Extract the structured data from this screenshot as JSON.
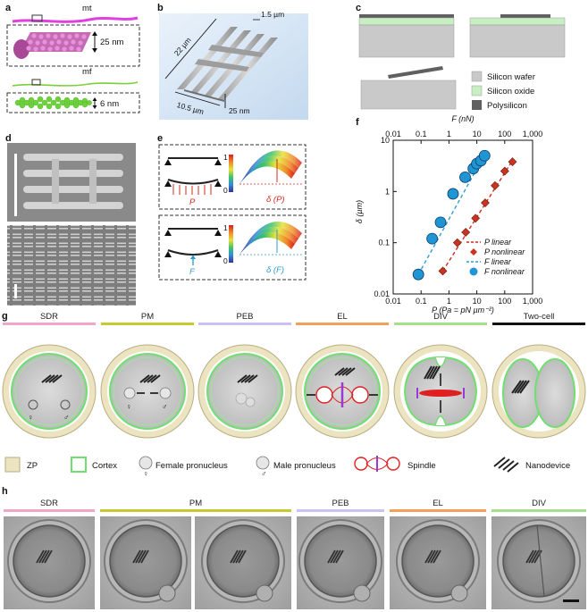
{
  "panels": {
    "a": "a",
    "b": "b",
    "c": "c",
    "d": "d",
    "e": "e",
    "f": "f",
    "g": "g",
    "h": "h"
  },
  "panel_a": {
    "mt_label": "mt",
    "mt_size": "25 nm",
    "mf_label": "mf",
    "mf_size": "6 nm"
  },
  "panel_b": {
    "dim_width": "1.5 µm",
    "dim_length": "22 µm",
    "dim_span": "10.5 µm",
    "dim_thickness": "25 nm"
  },
  "panel_c": {
    "legend": [
      "Silicon wafer",
      "Silicon oxide",
      "Polysilicon"
    ],
    "colors": {
      "wafer": "#c9c9c9",
      "oxide": "#c8efc4",
      "poly": "#606060"
    }
  },
  "panel_e": {
    "p_label": "P",
    "f_label": "F",
    "delta_p": "δ (P)",
    "delta_f": "δ (F)",
    "scale_top": "1",
    "scale_bottom": "0"
  },
  "chart_data": {
    "type": "scatter",
    "xlabel": "P (Pa = pN µm⁻²)",
    "xlabel_top": "F (nN)",
    "ylabel": "δ (µm)",
    "xscale": "log",
    "yscale": "log",
    "xlim": [
      0.01,
      1000
    ],
    "ylim": [
      0.01,
      10
    ],
    "xticks": [
      "0.01",
      "0.1",
      "1",
      "10",
      "100",
      "1,000"
    ],
    "yticks": [
      "0.01",
      "0.1",
      "1",
      "10"
    ],
    "series": [
      {
        "name": "P linear",
        "kind": "line",
        "color": "#d42a1e",
        "points": [
          [
            0.6,
            0.028
          ],
          [
            200,
            4.2
          ]
        ]
      },
      {
        "name": "P nonlinear",
        "kind": "diamond",
        "color": "#c8341f",
        "points": [
          [
            0.6,
            0.028
          ],
          [
            2,
            0.1
          ],
          [
            4,
            0.16
          ],
          [
            9,
            0.3
          ],
          [
            20,
            0.6
          ],
          [
            45,
            1.3
          ],
          [
            100,
            2.5
          ],
          [
            190,
            3.8
          ]
        ]
      },
      {
        "name": "F linear",
        "kind": "line",
        "color": "#2f9bd1",
        "points": [
          [
            0.08,
            0.024
          ],
          [
            20,
            5.5
          ]
        ]
      },
      {
        "name": "F nonlinear",
        "kind": "circle",
        "color": "#1f95d3",
        "points": [
          [
            0.08,
            0.024
          ],
          [
            0.25,
            0.12
          ],
          [
            0.5,
            0.25
          ],
          [
            1.4,
            0.9
          ],
          [
            3.8,
            1.9
          ],
          [
            7.5,
            2.8
          ],
          [
            10,
            3.5
          ],
          [
            14,
            4.0
          ],
          [
            19,
            5.0
          ]
        ]
      }
    ],
    "legend_position": "bottom-right"
  },
  "panel_g": {
    "stages": [
      {
        "label": "SDR",
        "color": "#f4a6c8"
      },
      {
        "label": "PM",
        "color": "#c8c830"
      },
      {
        "label": "PEB",
        "color": "#c9c3ef"
      },
      {
        "label": "EL",
        "color": "#f4a05a"
      },
      {
        "label": "DIV",
        "color": "#a6e08c"
      },
      {
        "label": "Two-cell",
        "color": "#111111"
      }
    ],
    "legend": [
      "ZP",
      "Cortex",
      "Female pronucleus",
      "Male pronucleus",
      "Spindle",
      "Nanodevice"
    ],
    "female_symbol": "♀",
    "male_symbol": "♂"
  },
  "panel_h": {
    "stages": [
      {
        "label": "SDR",
        "color": "#f4a6c8"
      },
      {
        "label": "PM",
        "color": "#c8c830"
      },
      {
        "label": "PEB",
        "color": "#c9c3ef"
      },
      {
        "label": "EL",
        "color": "#f4a05a"
      },
      {
        "label": "DIV",
        "color": "#a6e08c"
      }
    ]
  }
}
